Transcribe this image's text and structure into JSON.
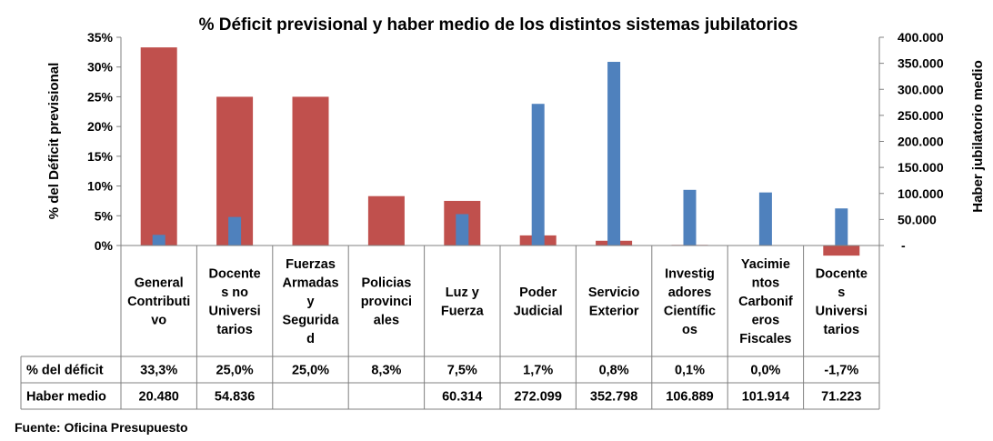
{
  "title": "% Déficit previsional y haber medio de los distintos sistemas jubilatorios",
  "source": "Fuente: Oficina Presupuesto",
  "colors": {
    "deficit": "#C0504D",
    "haber": "#4F81BD",
    "grid": "#808080"
  },
  "chart_data": {
    "type": "bar",
    "title": "% Déficit previsional y haber medio de los distintos sistemas jubilatorios",
    "ylabel": "% del Déficit  previsional",
    "y2label": "Haber jubilatorio medio",
    "ylim": [
      0,
      35
    ],
    "y2lim": [
      0,
      400000
    ],
    "yticks": [
      "0%",
      "5%",
      "10%",
      "15%",
      "20%",
      "25%",
      "30%",
      "35%"
    ],
    "y2ticks": [
      "-",
      "50.000",
      "100.000",
      "150.000",
      "200.000",
      "250.000",
      "300.000",
      "350.000",
      "400.000"
    ],
    "grid": false,
    "legend": "none",
    "categories": [
      [
        "General",
        "Contributi",
        "vo"
      ],
      [
        "Docente",
        "s no",
        "Universi",
        "tarios"
      ],
      [
        "Fuerzas",
        "Armadas",
        "y",
        "Segurida",
        "d"
      ],
      [
        "Policias",
        "provinci",
        "ales"
      ],
      [
        "Luz y",
        "Fuerza"
      ],
      [
        "Poder",
        "Judicial"
      ],
      [
        "Servicio",
        "Exterior"
      ],
      [
        "Investig",
        "adores",
        "Científic",
        "os"
      ],
      [
        "Yacimie",
        "ntos",
        "Carbonif",
        "eros",
        "Fiscales"
      ],
      [
        "Docente",
        "s",
        "Universi",
        "tarios"
      ]
    ],
    "series": [
      {
        "name": "% del déficit",
        "axis": "left",
        "values": [
          33.3,
          25.0,
          25.0,
          8.3,
          7.5,
          1.7,
          0.8,
          0.1,
          0.0,
          -1.7
        ],
        "labels": [
          "33,3%",
          "25,0%",
          "25,0%",
          "8,3%",
          "7,5%",
          "1,7%",
          "0,8%",
          "0,1%",
          "0,0%",
          "-1,7%"
        ]
      },
      {
        "name": "Haber medio",
        "axis": "right",
        "values": [
          20480,
          54836,
          null,
          null,
          60314,
          272099,
          352798,
          106889,
          101914,
          71223
        ],
        "labels": [
          "20.480",
          "54.836",
          "",
          "",
          "60.314",
          "272.099",
          "352.798",
          "106.889",
          "101.914",
          "71.223"
        ]
      }
    ]
  }
}
